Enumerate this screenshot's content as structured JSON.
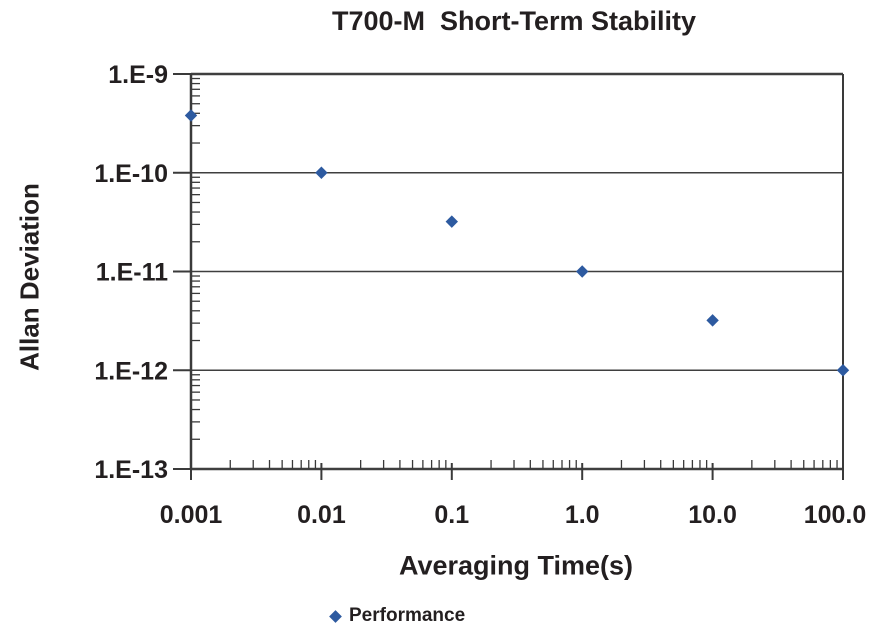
{
  "colors": {
    "background": "#ffffff",
    "axis": "#3a3a3a",
    "grid": "#3f3f3f",
    "text": "#231f20",
    "marker": "#2d5aa0"
  },
  "chart_data": {
    "type": "scatter",
    "title": "T700-M  Short-Term Stability",
    "xlabel": "Averaging Time(s)",
    "ylabel": "Allan Deviation",
    "x_scale": "log",
    "y_scale": "log",
    "xlim": [
      0.001,
      100
    ],
    "ylim": [
      1e-13,
      1e-09
    ],
    "grid": "horizontal-decade-gridlines",
    "x_ticks": [
      {
        "value": 0.001,
        "label": "0.001"
      },
      {
        "value": 0.01,
        "label": "0.01"
      },
      {
        "value": 0.1,
        "label": "0.1"
      },
      {
        "value": 1,
        "label": "1.0"
      },
      {
        "value": 10,
        "label": "10.0"
      },
      {
        "value": 100,
        "label": "100.0"
      }
    ],
    "y_ticks": [
      {
        "value": 1e-09,
        "label": "1.E-9"
      },
      {
        "value": 1e-10,
        "label": "1.E-10"
      },
      {
        "value": 1e-11,
        "label": "1.E-11"
      },
      {
        "value": 1e-12,
        "label": "1.E-12"
      },
      {
        "value": 1e-13,
        "label": "1.E-13"
      }
    ],
    "legend": {
      "position": "bottom",
      "entries": [
        {
          "label": "Performance",
          "marker": "diamond",
          "color": "#2d5aa0"
        }
      ]
    },
    "series": [
      {
        "name": "Performance",
        "marker": "diamond",
        "color": "#2d5aa0",
        "points": [
          [
            0.001,
            3.8e-10
          ],
          [
            0.01,
            1e-10
          ],
          [
            0.1,
            3.2e-11
          ],
          [
            1,
            1e-11
          ],
          [
            10,
            3.2e-12
          ],
          [
            100,
            1e-12
          ]
        ]
      }
    ]
  }
}
